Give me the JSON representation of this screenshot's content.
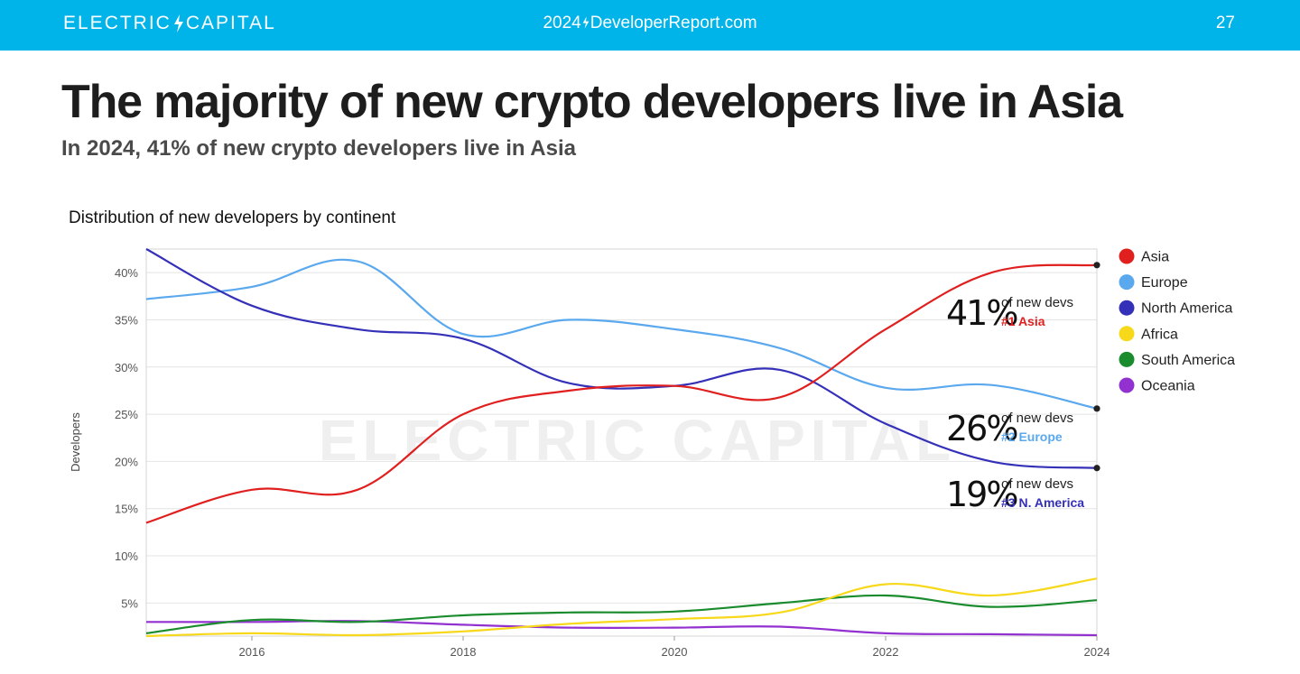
{
  "header": {
    "brand": "ELECTRIC CAPITAL",
    "brand_left": "ELECTRIC",
    "brand_right": "CAPITAL",
    "site_year": "2024",
    "site_name": "DeveloperReport.com",
    "page_number": "27"
  },
  "title": "The majority of new crypto developers live in Asia",
  "subtitle": "In 2024, 41% of new crypto developers live in Asia",
  "watermark": "ELECTRIC CAPITAL",
  "chart_data": {
    "type": "line",
    "title": "Distribution of new developers by continent",
    "xlabel": "",
    "ylabel": "Developers",
    "xlim": [
      2015,
      2024
    ],
    "ylim": [
      1.5,
      42.5
    ],
    "x_ticks": [
      2016,
      2018,
      2020,
      2022,
      2024
    ],
    "y_ticks": [
      5,
      10,
      15,
      20,
      25,
      30,
      35,
      40
    ],
    "y_tick_format": "percent",
    "grid": true,
    "legend_position": "right",
    "series": [
      {
        "name": "Asia",
        "color": "#e01f1f",
        "x": [
          2015,
          2016,
          2017,
          2018,
          2019,
          2020,
          2021,
          2022,
          2023,
          2024
        ],
        "values": [
          13.5,
          17,
          17,
          25,
          27.5,
          28,
          26.8,
          34,
          40,
          40.8
        ]
      },
      {
        "name": "Europe",
        "color": "#5aa8ee",
        "x": [
          2015,
          2016,
          2017,
          2018,
          2019,
          2020,
          2021,
          2022,
          2023,
          2024
        ],
        "values": [
          37.2,
          38.5,
          41.2,
          33.5,
          35,
          34,
          32,
          27.8,
          28.1,
          25.6
        ]
      },
      {
        "name": "North America",
        "color": "#3530b8",
        "x": [
          2015,
          2016,
          2017,
          2018,
          2019,
          2020,
          2021,
          2022,
          2023,
          2024
        ],
        "values": [
          42.5,
          36.5,
          34,
          33,
          28.3,
          28,
          29.7,
          24,
          20,
          19.3
        ]
      },
      {
        "name": "Africa",
        "color": "#f7d81a",
        "x": [
          2015,
          2016,
          2017,
          2018,
          2019,
          2020,
          2021,
          2022,
          2023,
          2024
        ],
        "values": [
          1.5,
          1.8,
          1.6,
          2,
          2.8,
          3.3,
          4,
          7,
          5.8,
          7.6
        ]
      },
      {
        "name": "South America",
        "color": "#1a8c2e",
        "x": [
          2015,
          2016,
          2017,
          2018,
          2019,
          2020,
          2021,
          2022,
          2023,
          2024
        ],
        "values": [
          1.8,
          3.2,
          3,
          3.7,
          4,
          4.1,
          5,
          5.8,
          4.6,
          5.3
        ]
      },
      {
        "name": "Oceania",
        "color": "#9230d0",
        "x": [
          2015,
          2016,
          2017,
          2018,
          2019,
          2020,
          2021,
          2022,
          2023,
          2024
        ],
        "values": [
          3,
          3,
          3.1,
          2.7,
          2.4,
          2.4,
          2.5,
          1.8,
          1.7,
          1.6
        ]
      }
    ],
    "annotations": [
      {
        "series": "Asia",
        "value_text": "41%",
        "caption": "of new devs",
        "rank": "#1 Asia",
        "color": "#e01f1f"
      },
      {
        "series": "Europe",
        "value_text": "26%",
        "caption": "of new devs",
        "rank": "#2 Europe",
        "color": "#5aa8ee"
      },
      {
        "series": "North America",
        "value_text": "19%",
        "caption": "of new devs",
        "rank": "#3 N. America",
        "color": "#3530b8"
      }
    ]
  }
}
